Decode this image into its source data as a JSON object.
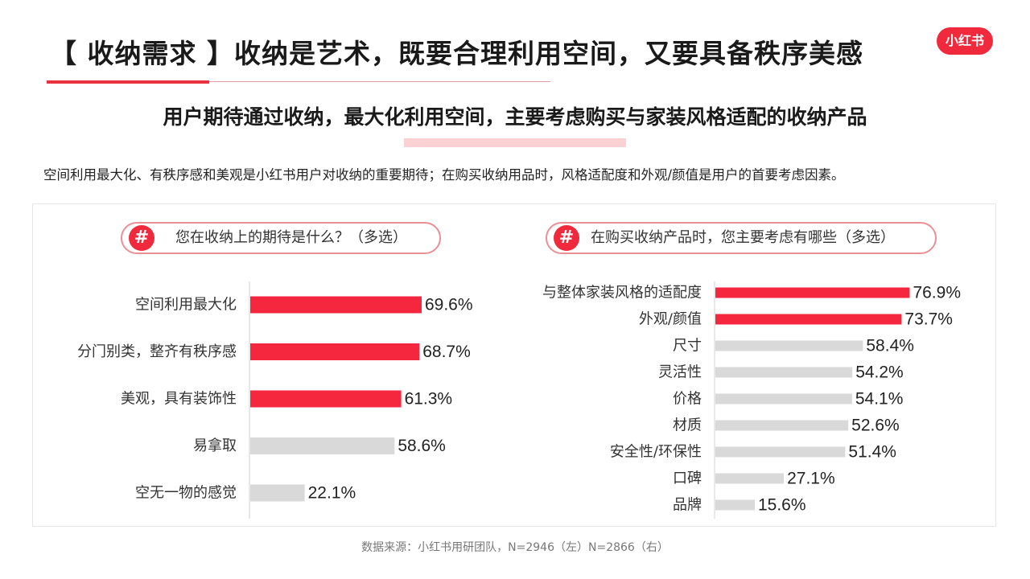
{
  "header": {
    "title": "【 收纳需求 】收纳是艺术，既要合理利用空间，又要具备秩序美感",
    "logo_text": "小红书",
    "subtitle": "用户期待通过收纳，最大化利用空间，主要考虑购买与家装风格适配的收纳产品",
    "summary": "空间利用最大化、有秩序感和美观是小红书用户对收纳的重要期待；在购买收纳用品时，风格适配度和外观/颜值是用户的首要考虑因素。"
  },
  "colors": {
    "accent": "#f0293c",
    "highlight_bar": "#f5273f",
    "muted_bar": "#d9d9d9",
    "pill_border": "#e98f96"
  },
  "icons": {
    "hash": "#"
  },
  "footer": {
    "source": "数据来源：小红书用研团队，N=2946（左）N=2866（右）"
  },
  "chart_data": [
    {
      "type": "bar",
      "orientation": "horizontal",
      "title": "您在收纳上的期待是什么？（多选）",
      "categories": [
        "空间利用最大化",
        "分门别类，整齐有秩序感",
        "美观，具有装饰性",
        "易拿取",
        "空无一物的感觉"
      ],
      "values": [
        69.6,
        68.7,
        61.3,
        58.6,
        22.1
      ],
      "labels": [
        "69.6%",
        "68.7%",
        "61.3%",
        "58.6%",
        "22.1%"
      ],
      "highlighted": [
        true,
        true,
        true,
        false,
        false
      ],
      "unit": "%",
      "xlim": [
        0,
        100
      ]
    },
    {
      "type": "bar",
      "orientation": "horizontal",
      "title": "在购买收纳产品时，您主要考虑有哪些（多选）",
      "categories": [
        "与整体家装风格的适配度",
        "外观/颜值",
        "尺寸",
        "灵活性",
        "价格",
        "材质",
        "安全性/环保性",
        "口碑",
        "品牌"
      ],
      "values": [
        76.9,
        73.7,
        58.4,
        54.2,
        54.1,
        52.6,
        51.4,
        27.1,
        15.6
      ],
      "labels": [
        "76.9%",
        "73.7%",
        "58.4%",
        "54.2%",
        "54.1%",
        "52.6%",
        "51.4%",
        "27.1%",
        "15.6%"
      ],
      "highlighted": [
        true,
        true,
        false,
        false,
        false,
        false,
        false,
        false,
        false
      ],
      "unit": "%",
      "xlim": [
        0,
        100
      ]
    }
  ]
}
